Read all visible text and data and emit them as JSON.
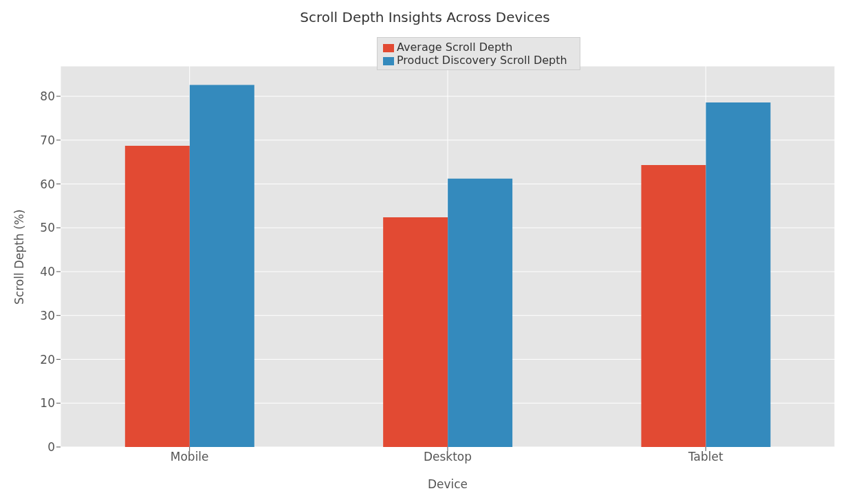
{
  "chart_data": {
    "type": "bar",
    "title": "Scroll Depth Insights Across Devices",
    "xlabel": "Device",
    "ylabel": "Scroll Depth (%)",
    "categories": [
      "Mobile",
      "Desktop",
      "Tablet"
    ],
    "series": [
      {
        "name": "Average Scroll Depth",
        "color": "#e24a33",
        "values": [
          68.7,
          52.4,
          64.3
        ]
      },
      {
        "name": "Product Discovery Scroll Depth",
        "color": "#348abd",
        "values": [
          82.6,
          61.2,
          78.6
        ]
      }
    ],
    "ylim": [
      0,
      86.9
    ],
    "yticks": [
      0,
      10,
      20,
      30,
      40,
      50,
      60,
      70,
      80
    ],
    "grid": true,
    "legend": "top"
  }
}
